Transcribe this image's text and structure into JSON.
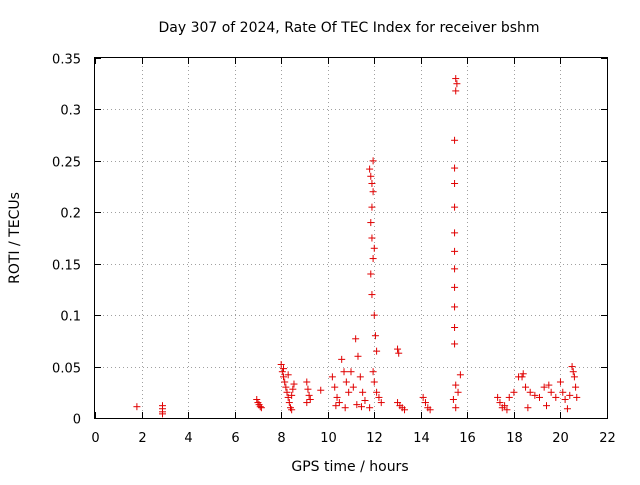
{
  "chart_data": {
    "type": "scatter",
    "title": "Day 307 of 2024, Rate Of TEC Index for receiver bshm",
    "xlabel": "GPS time / hours",
    "ylabel": "ROTI / TECUs",
    "xlim": [
      0,
      22
    ],
    "ylim": [
      0,
      0.35
    ],
    "xticks": [
      0,
      2,
      4,
      6,
      8,
      10,
      12,
      14,
      16,
      18,
      20,
      22
    ],
    "yticks": [
      0,
      0.05,
      0.1,
      0.15,
      0.2,
      0.25,
      0.3,
      0.35
    ],
    "xtick_labels": [
      "0",
      "2",
      "4",
      "6",
      "8",
      "10",
      "12",
      "14",
      "16",
      "18",
      "20",
      "22"
    ],
    "ytick_labels": [
      "0",
      "0.05",
      "0.1",
      "0.15",
      "0.2",
      "0.25",
      "0.3",
      "0.35"
    ],
    "grid": true,
    "marker": "+",
    "series": [
      {
        "name": "ROTI",
        "color": "#e00000",
        "points": [
          [
            1.8,
            0.011
          ],
          [
            2.9,
            0.012
          ],
          [
            2.9,
            0.009
          ],
          [
            2.9,
            0.006
          ],
          [
            2.9,
            0.004
          ],
          [
            6.95,
            0.018
          ],
          [
            7.0,
            0.015
          ],
          [
            7.05,
            0.013
          ],
          [
            7.1,
            0.011
          ],
          [
            7.15,
            0.01
          ],
          [
            8.0,
            0.052
          ],
          [
            8.05,
            0.045
          ],
          [
            8.1,
            0.04
          ],
          [
            8.15,
            0.035
          ],
          [
            8.2,
            0.03
          ],
          [
            8.25,
            0.025
          ],
          [
            8.3,
            0.02
          ],
          [
            8.35,
            0.015
          ],
          [
            8.4,
            0.01
          ],
          [
            8.45,
            0.008
          ],
          [
            8.5,
            0.028
          ],
          [
            8.55,
            0.033
          ],
          [
            8.1,
            0.048
          ],
          [
            8.3,
            0.042
          ],
          [
            8.45,
            0.022
          ],
          [
            9.1,
            0.035
          ],
          [
            9.15,
            0.028
          ],
          [
            9.2,
            0.022
          ],
          [
            9.25,
            0.018
          ],
          [
            9.1,
            0.015
          ],
          [
            9.7,
            0.027
          ],
          [
            10.2,
            0.04
          ],
          [
            10.3,
            0.03
          ],
          [
            10.4,
            0.02
          ],
          [
            10.5,
            0.015
          ],
          [
            10.6,
            0.057
          ],
          [
            10.7,
            0.045
          ],
          [
            10.8,
            0.035
          ],
          [
            10.9,
            0.025
          ],
          [
            11.0,
            0.045
          ],
          [
            11.1,
            0.03
          ],
          [
            11.2,
            0.077
          ],
          [
            11.3,
            0.06
          ],
          [
            11.4,
            0.04
          ],
          [
            11.5,
            0.025
          ],
          [
            11.6,
            0.017
          ],
          [
            10.35,
            0.012
          ],
          [
            10.75,
            0.01
          ],
          [
            11.25,
            0.013
          ],
          [
            11.45,
            0.011
          ],
          [
            11.8,
            0.242
          ],
          [
            11.85,
            0.235
          ],
          [
            11.9,
            0.228
          ],
          [
            11.95,
            0.22
          ],
          [
            11.95,
            0.25
          ],
          [
            11.9,
            0.205
          ],
          [
            11.85,
            0.19
          ],
          [
            11.9,
            0.175
          ],
          [
            12.0,
            0.165
          ],
          [
            11.95,
            0.155
          ],
          [
            11.85,
            0.14
          ],
          [
            11.9,
            0.12
          ],
          [
            12.0,
            0.1
          ],
          [
            12.05,
            0.08
          ],
          [
            12.1,
            0.065
          ],
          [
            11.95,
            0.045
          ],
          [
            12.0,
            0.035
          ],
          [
            12.1,
            0.025
          ],
          [
            12.2,
            0.02
          ],
          [
            12.3,
            0.015
          ],
          [
            11.8,
            0.01
          ],
          [
            13.0,
            0.067
          ],
          [
            13.05,
            0.063
          ],
          [
            13.0,
            0.015
          ],
          [
            13.1,
            0.012
          ],
          [
            13.2,
            0.01
          ],
          [
            13.3,
            0.008
          ],
          [
            14.1,
            0.02
          ],
          [
            14.2,
            0.015
          ],
          [
            14.3,
            0.01
          ],
          [
            14.4,
            0.008
          ],
          [
            15.5,
            0.33
          ],
          [
            15.55,
            0.325
          ],
          [
            15.5,
            0.318
          ],
          [
            15.45,
            0.27
          ],
          [
            15.45,
            0.243
          ],
          [
            15.45,
            0.228
          ],
          [
            15.45,
            0.205
          ],
          [
            15.45,
            0.18
          ],
          [
            15.45,
            0.162
          ],
          [
            15.45,
            0.145
          ],
          [
            15.45,
            0.127
          ],
          [
            15.45,
            0.108
          ],
          [
            15.45,
            0.088
          ],
          [
            15.45,
            0.072
          ],
          [
            15.7,
            0.042
          ],
          [
            15.5,
            0.032
          ],
          [
            15.6,
            0.025
          ],
          [
            15.4,
            0.018
          ],
          [
            15.5,
            0.01
          ],
          [
            17.3,
            0.02
          ],
          [
            17.4,
            0.015
          ],
          [
            17.5,
            0.01
          ],
          [
            17.6,
            0.012
          ],
          [
            17.8,
            0.02
          ],
          [
            18.0,
            0.025
          ],
          [
            18.2,
            0.04
          ],
          [
            18.35,
            0.04
          ],
          [
            18.4,
            0.043
          ],
          [
            18.5,
            0.03
          ],
          [
            18.7,
            0.025
          ],
          [
            18.9,
            0.022
          ],
          [
            19.1,
            0.02
          ],
          [
            19.3,
            0.03
          ],
          [
            19.5,
            0.032
          ],
          [
            19.6,
            0.025
          ],
          [
            19.8,
            0.02
          ],
          [
            20.0,
            0.035
          ],
          [
            20.1,
            0.025
          ],
          [
            20.2,
            0.018
          ],
          [
            20.4,
            0.022
          ],
          [
            20.5,
            0.05
          ],
          [
            20.55,
            0.045
          ],
          [
            20.6,
            0.04
          ],
          [
            20.65,
            0.03
          ],
          [
            20.7,
            0.02
          ],
          [
            17.7,
            0.008
          ],
          [
            18.6,
            0.01
          ],
          [
            19.4,
            0.012
          ],
          [
            20.3,
            0.009
          ]
        ]
      }
    ]
  }
}
